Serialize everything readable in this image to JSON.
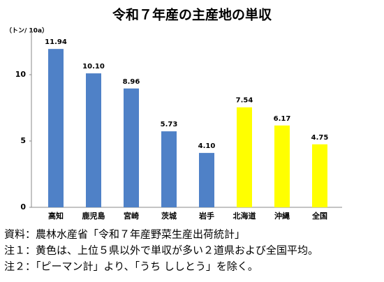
{
  "chart_data": {
    "type": "bar",
    "title": "令和７年産の主産地の単収",
    "y_axis_label": "（トン/ 10a）",
    "categories": [
      "高知",
      "鹿児島",
      "宮崎",
      "茨城",
      "岩手",
      "北海道",
      "沖縄",
      "全国"
    ],
    "values": [
      11.94,
      10.1,
      8.96,
      5.73,
      4.1,
      7.54,
      6.17,
      4.75
    ],
    "value_labels": [
      "11.94",
      "10.10",
      "8.96",
      "5.73",
      "4.10",
      "7.54",
      "6.17",
      "4.75"
    ],
    "colors": [
      "#4f81c7",
      "#4f81c7",
      "#4f81c7",
      "#4f81c7",
      "#4f81c7",
      "#ffff00",
      "#ffff00",
      "#ffff00"
    ],
    "ylim": [
      0,
      13.3
    ],
    "yticks": [
      0,
      5,
      10
    ],
    "grid": false
  },
  "notes": [
    "資料：農林水産省「令和７年産野菜生産出荷統計」",
    "注１：黄色は、上位５県以外で単収が多い２道県および全国平均。",
    "注２：「ピーマン計」より、「うち ししとう」を除く。"
  ]
}
